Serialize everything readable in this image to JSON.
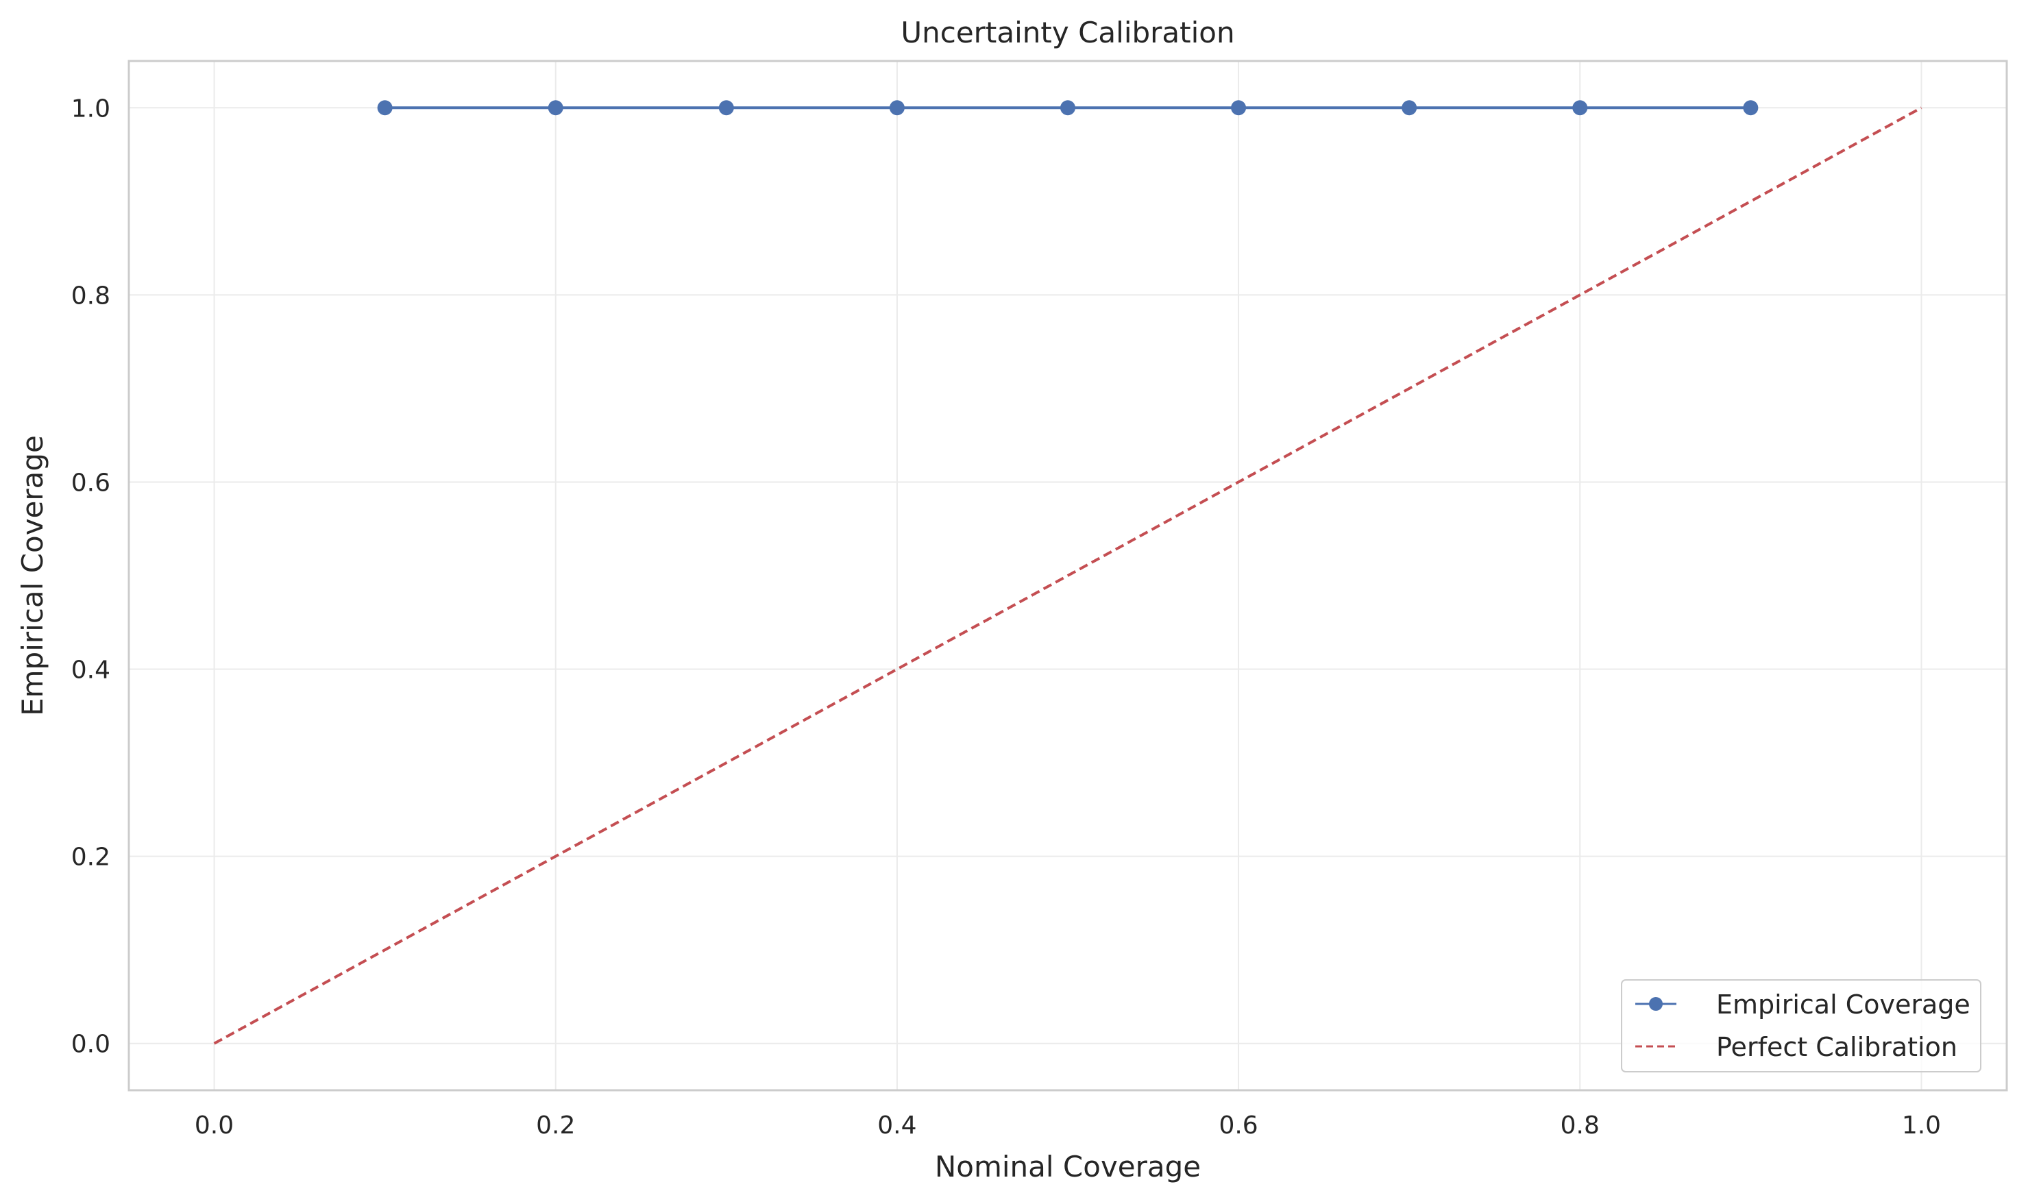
{
  "chart_data": {
    "type": "line",
    "title": "Uncertainty Calibration",
    "xlabel": "Nominal Coverage",
    "ylabel": "Empirical Coverage",
    "xlim": [
      -0.05,
      1.05
    ],
    "ylim": [
      -0.05,
      1.05
    ],
    "xticks": [
      0.0,
      0.2,
      0.4,
      0.6,
      0.8,
      1.0
    ],
    "xtick_labels": [
      "0.0",
      "0.2",
      "0.4",
      "0.6",
      "0.8",
      "1.0"
    ],
    "yticks": [
      0.0,
      0.2,
      0.4,
      0.6,
      0.8,
      1.0
    ],
    "ytick_labels": [
      "0.0",
      "0.2",
      "0.4",
      "0.6",
      "0.8",
      "1.0"
    ],
    "grid": true,
    "legend_position": "lower right",
    "series": [
      {
        "name": "Empirical Coverage",
        "style": "solid line with circle markers",
        "color": "#4c72b0",
        "x": [
          0.1,
          0.2,
          0.3,
          0.4,
          0.5,
          0.6,
          0.7,
          0.8,
          0.9
        ],
        "y": [
          1.0,
          1.0,
          1.0,
          1.0,
          1.0,
          1.0,
          1.0,
          1.0,
          1.0
        ]
      },
      {
        "name": "Perfect Calibration",
        "style": "dashed line",
        "color": "#c44e52",
        "x": [
          0.0,
          1.0
        ],
        "y": [
          0.0,
          1.0
        ]
      }
    ]
  }
}
